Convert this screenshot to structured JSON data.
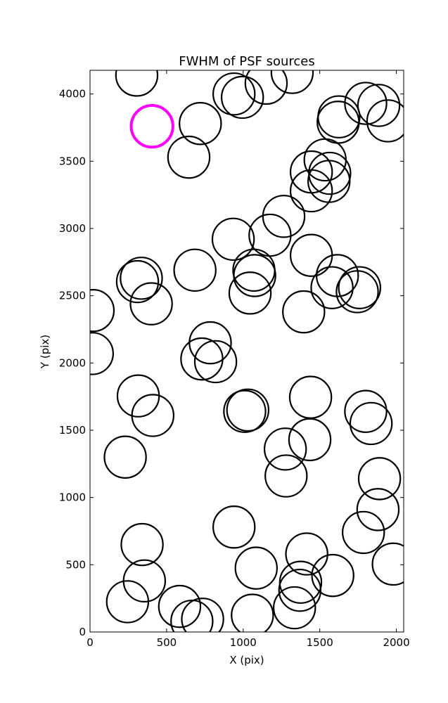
{
  "chart_data": {
    "type": "scatter",
    "title": "FWHM of PSF sources",
    "xlabel": "X (pix)",
    "ylabel": "Y (pix)",
    "xlim": [
      0,
      2048
    ],
    "ylim": [
      0,
      4176
    ],
    "xticks": [
      0,
      500,
      1000,
      1500,
      2000
    ],
    "yticks": [
      0,
      500,
      1000,
      1500,
      2000,
      2500,
      3000,
      3500,
      4000
    ],
    "grid": false,
    "marker": "open circle",
    "radius_pix": 136,
    "colors": {
      "sources": "#000000",
      "highlight": "#ff00ff"
    },
    "highlight": {
      "x": 405,
      "y": 3760
    },
    "sources": [
      {
        "x": 305,
        "y": 4140
      },
      {
        "x": 720,
        "y": 3780
      },
      {
        "x": 645,
        "y": 3530
      },
      {
        "x": 940,
        "y": 4000
      },
      {
        "x": 995,
        "y": 3975
      },
      {
        "x": 1150,
        "y": 4080
      },
      {
        "x": 1320,
        "y": 4160
      },
      {
        "x": 1625,
        "y": 3830
      },
      {
        "x": 1620,
        "y": 3790
      },
      {
        "x": 1800,
        "y": 3930
      },
      {
        "x": 1885,
        "y": 3915
      },
      {
        "x": 1945,
        "y": 3800
      },
      {
        "x": 1535,
        "y": 3510
      },
      {
        "x": 1445,
        "y": 3420
      },
      {
        "x": 1565,
        "y": 3410
      },
      {
        "x": 1560,
        "y": 3350
      },
      {
        "x": 1445,
        "y": 3280
      },
      {
        "x": 1265,
        "y": 3090
      },
      {
        "x": 1175,
        "y": 2950
      },
      {
        "x": 935,
        "y": 2920
      },
      {
        "x": 1445,
        "y": 2800
      },
      {
        "x": 1070,
        "y": 2690
      },
      {
        "x": 1075,
        "y": 2650
      },
      {
        "x": 1045,
        "y": 2520
      },
      {
        "x": 685,
        "y": 2690
      },
      {
        "x": 335,
        "y": 2630
      },
      {
        "x": 310,
        "y": 2605
      },
      {
        "x": 400,
        "y": 2440
      },
      {
        "x": 20,
        "y": 2390
      },
      {
        "x": 1395,
        "y": 2380
      },
      {
        "x": 1615,
        "y": 2650
      },
      {
        "x": 1580,
        "y": 2560
      },
      {
        "x": 1760,
        "y": 2560
      },
      {
        "x": 1745,
        "y": 2530
      },
      {
        "x": 15,
        "y": 2070
      },
      {
        "x": 785,
        "y": 2150
      },
      {
        "x": 730,
        "y": 2030
      },
      {
        "x": 820,
        "y": 2010
      },
      {
        "x": 1030,
        "y": 1650
      },
      {
        "x": 1010,
        "y": 1640
      },
      {
        "x": 315,
        "y": 1755
      },
      {
        "x": 410,
        "y": 1610
      },
      {
        "x": 1440,
        "y": 1745
      },
      {
        "x": 1800,
        "y": 1640
      },
      {
        "x": 1835,
        "y": 1550
      },
      {
        "x": 1435,
        "y": 1430
      },
      {
        "x": 1275,
        "y": 1360
      },
      {
        "x": 1280,
        "y": 1160
      },
      {
        "x": 230,
        "y": 1300
      },
      {
        "x": 1890,
        "y": 1140
      },
      {
        "x": 1880,
        "y": 910
      },
      {
        "x": 1785,
        "y": 740
      },
      {
        "x": 940,
        "y": 780
      },
      {
        "x": 340,
        "y": 650
      },
      {
        "x": 355,
        "y": 380
      },
      {
        "x": 1415,
        "y": 580
      },
      {
        "x": 1585,
        "y": 420
      },
      {
        "x": 1085,
        "y": 475
      },
      {
        "x": 1375,
        "y": 370
      },
      {
        "x": 1370,
        "y": 310
      },
      {
        "x": 1335,
        "y": 180
      },
      {
        "x": 1980,
        "y": 505
      },
      {
        "x": 245,
        "y": 225
      },
      {
        "x": 585,
        "y": 190
      },
      {
        "x": 665,
        "y": 80
      },
      {
        "x": 735,
        "y": 95
      },
      {
        "x": 1060,
        "y": 125
      }
    ]
  }
}
